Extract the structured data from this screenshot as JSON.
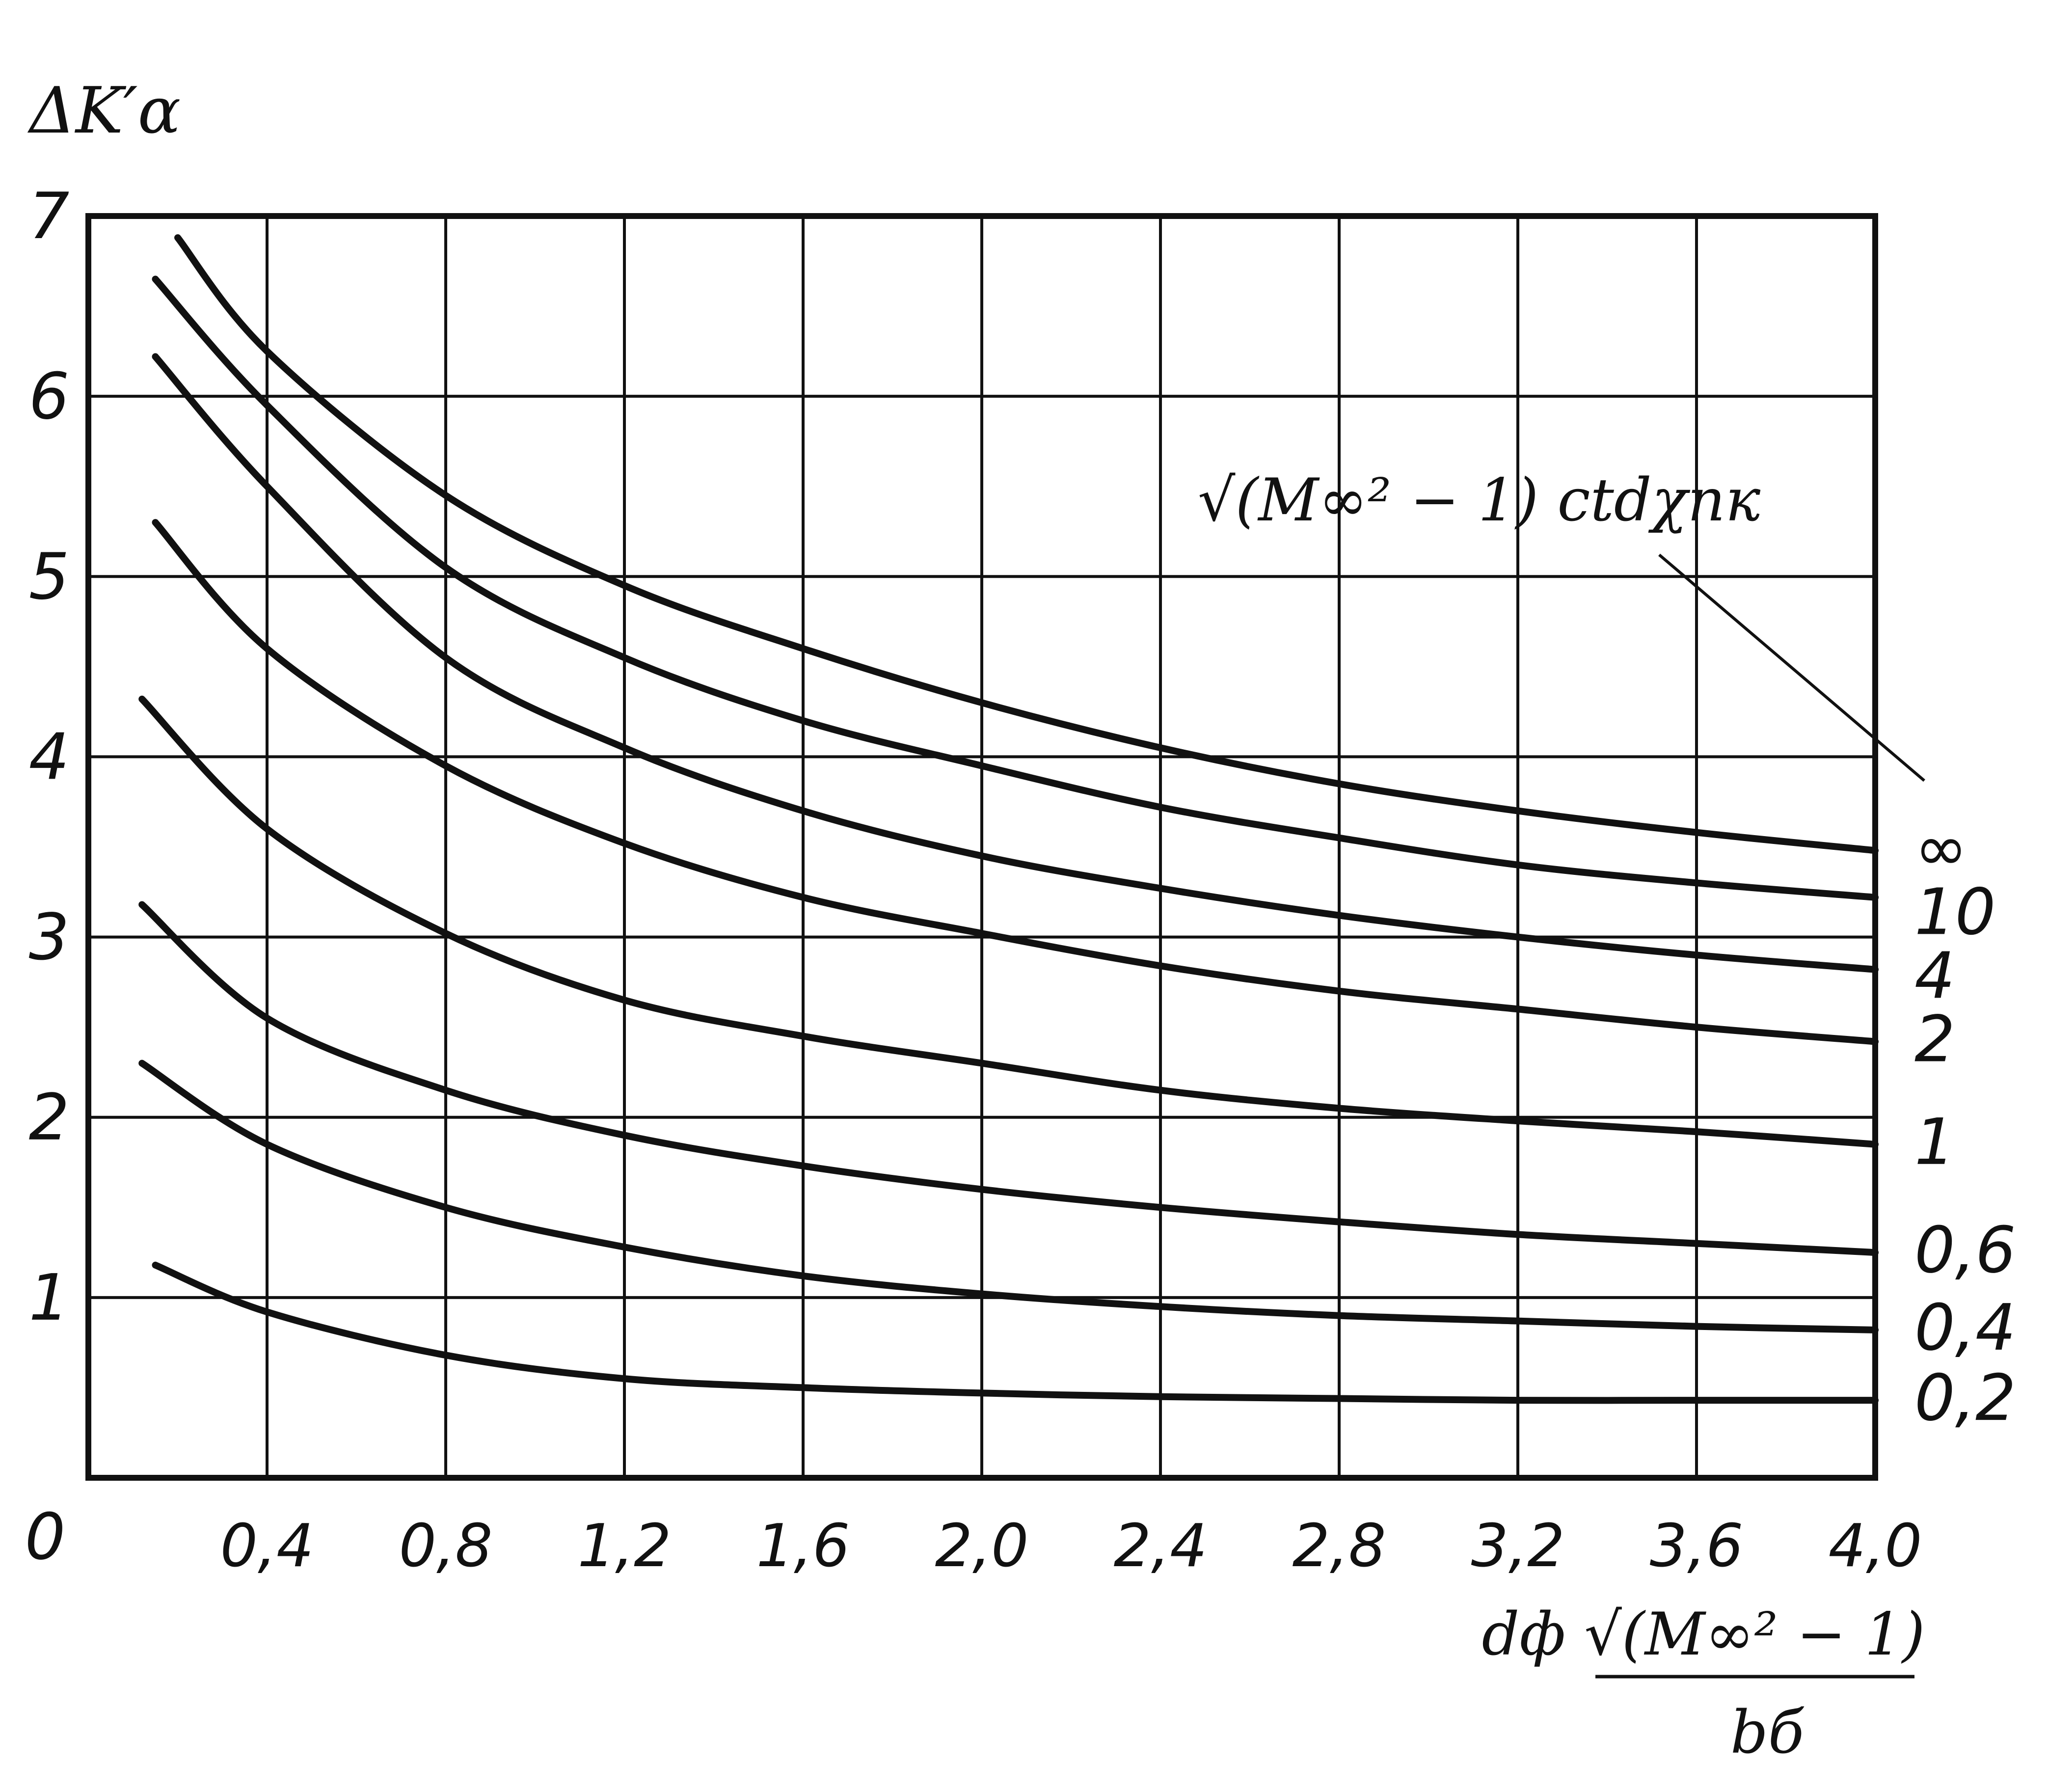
{
  "chart_data": {
    "type": "line",
    "ylabel": "ΔK′α",
    "xlabel": {
      "numerator": "dф √(M∞² − 1)",
      "denominator": "bб"
    },
    "parameter_label": "√(M∞² − 1) ctdχпк",
    "origin_label": "0",
    "xlim": [
      0,
      4.0
    ],
    "ylim": [
      0,
      7
    ],
    "grid": true,
    "x_ticks": [
      "0,4",
      "0,8",
      "1,2",
      "1,6",
      "2,0",
      "2,4",
      "2,8",
      "3,2",
      "3,6",
      "4,0"
    ],
    "y_ticks": [
      "1",
      "2",
      "3",
      "4",
      "5",
      "6",
      "7"
    ],
    "series": [
      {
        "name": "∞",
        "x": [
          0.2,
          0.4,
          0.8,
          1.2,
          1.6,
          2.0,
          2.4,
          2.8,
          3.2,
          3.6,
          4.0
        ],
        "y": [
          6.88,
          6.25,
          5.45,
          4.95,
          4.6,
          4.3,
          4.05,
          3.85,
          3.7,
          3.58,
          3.48
        ]
      },
      {
        "name": "10",
        "x": [
          0.15,
          0.4,
          0.8,
          1.2,
          1.6,
          2.0,
          2.4,
          2.8,
          3.2,
          3.6,
          4.0
        ],
        "y": [
          6.65,
          5.95,
          5.05,
          4.55,
          4.2,
          3.95,
          3.72,
          3.55,
          3.4,
          3.3,
          3.22
        ]
      },
      {
        "name": "4",
        "x": [
          0.15,
          0.4,
          0.8,
          1.2,
          1.6,
          2.0,
          2.4,
          2.8,
          3.2,
          3.6,
          4.0
        ],
        "y": [
          6.22,
          5.5,
          4.55,
          4.05,
          3.7,
          3.45,
          3.27,
          3.12,
          3.0,
          2.9,
          2.82
        ]
      },
      {
        "name": "2",
        "x": [
          0.15,
          0.4,
          0.8,
          1.2,
          1.6,
          2.0,
          2.4,
          2.8,
          3.2,
          3.6,
          4.0
        ],
        "y": [
          5.3,
          4.6,
          3.95,
          3.52,
          3.22,
          3.02,
          2.84,
          2.7,
          2.6,
          2.5,
          2.42
        ]
      },
      {
        "name": "1",
        "x": [
          0.12,
          0.4,
          0.8,
          1.2,
          1.6,
          2.0,
          2.4,
          2.8,
          3.2,
          3.6,
          4.0
        ],
        "y": [
          4.32,
          3.6,
          3.02,
          2.65,
          2.45,
          2.3,
          2.15,
          2.05,
          1.98,
          1.92,
          1.85
        ]
      },
      {
        "name": "0,6",
        "x": [
          0.12,
          0.4,
          0.8,
          1.2,
          1.6,
          2.0,
          2.4,
          2.8,
          3.2,
          3.6,
          4.0
        ],
        "y": [
          3.18,
          2.55,
          2.15,
          1.9,
          1.73,
          1.6,
          1.5,
          1.42,
          1.35,
          1.3,
          1.25
        ]
      },
      {
        "name": "0,4",
        "x": [
          0.12,
          0.4,
          0.8,
          1.2,
          1.6,
          2.0,
          2.4,
          2.8,
          3.2,
          3.6,
          4.0
        ],
        "y": [
          2.3,
          1.85,
          1.5,
          1.28,
          1.12,
          1.02,
          0.95,
          0.9,
          0.87,
          0.84,
          0.82
        ]
      },
      {
        "name": "0,2",
        "x": [
          0.15,
          0.4,
          0.8,
          1.2,
          1.6,
          2.0,
          2.4,
          2.8,
          3.2,
          3.6,
          4.0
        ],
        "y": [
          1.18,
          0.92,
          0.68,
          0.55,
          0.5,
          0.47,
          0.45,
          0.44,
          0.43,
          0.43,
          0.43
        ]
      }
    ]
  }
}
